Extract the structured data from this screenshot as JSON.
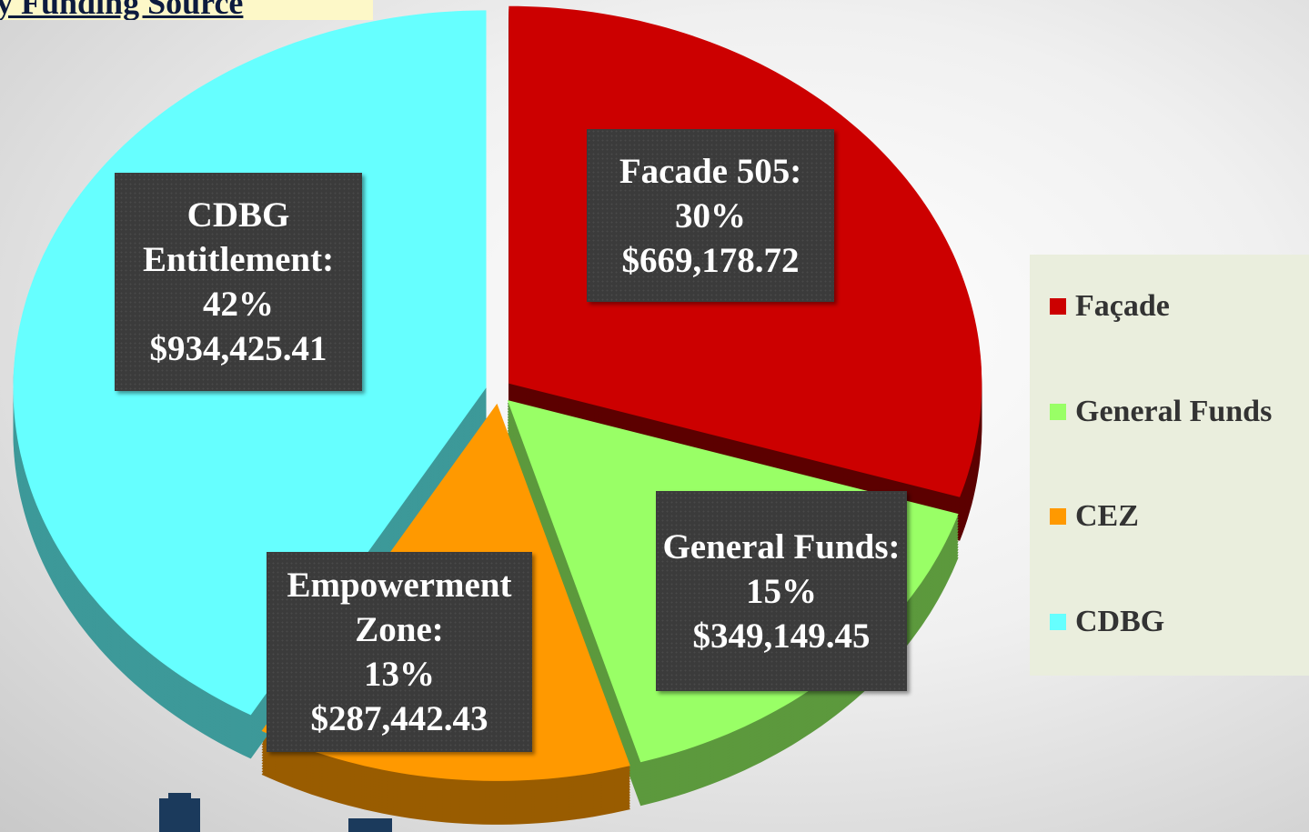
{
  "chart_data": {
    "type": "pie",
    "title": "y Funding Source",
    "categories": [
      "Façade",
      "General Funds",
      "CEZ",
      "CDBG"
    ],
    "label_names": [
      "Facade 505:",
      "General Funds:",
      "Empowerment Zone:",
      "CDBG Entitlement:"
    ],
    "values": [
      30,
      15,
      13,
      42
    ],
    "value_labels": [
      "30%",
      "15%",
      "13%",
      "42%"
    ],
    "amounts": [
      669178.72,
      349149.45,
      287442.43,
      934425.41
    ],
    "amount_labels": [
      "$669,178.72",
      "$349,149.45",
      "$287,442.43",
      "$934,425.41"
    ],
    "colors": [
      "#cc0000",
      "#99ff66",
      "#ff9900",
      "#66ffff"
    ],
    "legend": "right"
  }
}
